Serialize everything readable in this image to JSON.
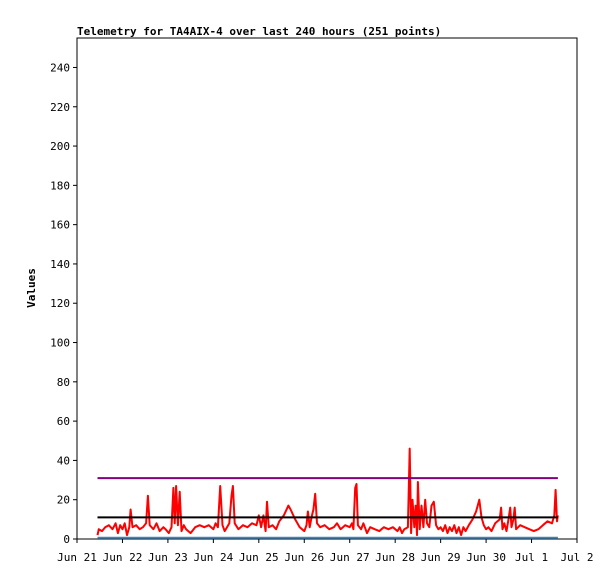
{
  "chart_data": {
    "type": "line",
    "title": "Telemetry for TA4AIX-4 over last 240 hours (251 points)",
    "xlabel": "",
    "ylabel": "Values",
    "ylim": [
      0,
      255
    ],
    "xlim": [
      0,
      11
    ],
    "yticks": [
      0,
      20,
      40,
      60,
      80,
      100,
      120,
      140,
      160,
      180,
      200,
      220,
      240
    ],
    "xticks": [
      {
        "x": 0,
        "label": "Jun 21"
      },
      {
        "x": 1,
        "label": "Jun 22"
      },
      {
        "x": 2,
        "label": "Jun 23"
      },
      {
        "x": 3,
        "label": "Jun 24"
      },
      {
        "x": 4,
        "label": "Jun 25"
      },
      {
        "x": 5,
        "label": "Jun 26"
      },
      {
        "x": 6,
        "label": "Jun 27"
      },
      {
        "x": 7,
        "label": "Jun 28"
      },
      {
        "x": 8,
        "label": "Jun 29"
      },
      {
        "x": 9,
        "label": "Jun 30"
      },
      {
        "x": 10,
        "label": "Jul 1"
      },
      {
        "x": 11,
        "label": "Jul 2"
      }
    ],
    "grid": false,
    "series": [
      {
        "color": "#ff0000",
        "points": [
          [
            0.45,
            2
          ],
          [
            0.48,
            5
          ],
          [
            0.55,
            4
          ],
          [
            0.62,
            6
          ],
          [
            0.7,
            7
          ],
          [
            0.78,
            5
          ],
          [
            0.85,
            8
          ],
          [
            0.9,
            3
          ],
          [
            0.95,
            7
          ],
          [
            1.0,
            5
          ],
          [
            1.05,
            8
          ],
          [
            1.1,
            2
          ],
          [
            1.15,
            6
          ],
          [
            1.18,
            15
          ],
          [
            1.22,
            6
          ],
          [
            1.3,
            7
          ],
          [
            1.38,
            5
          ],
          [
            1.45,
            6
          ],
          [
            1.52,
            8
          ],
          [
            1.56,
            22
          ],
          [
            1.6,
            7
          ],
          [
            1.68,
            5
          ],
          [
            1.75,
            8
          ],
          [
            1.82,
            4
          ],
          [
            1.9,
            6
          ],
          [
            1.95,
            5
          ],
          [
            2.02,
            3
          ],
          [
            2.08,
            6
          ],
          [
            2.12,
            26
          ],
          [
            2.15,
            8
          ],
          [
            2.18,
            27
          ],
          [
            2.22,
            7
          ],
          [
            2.26,
            24
          ],
          [
            2.3,
            4
          ],
          [
            2.35,
            7
          ],
          [
            2.4,
            5
          ],
          [
            2.5,
            3
          ],
          [
            2.6,
            6
          ],
          [
            2.7,
            7
          ],
          [
            2.8,
            6
          ],
          [
            2.9,
            7
          ],
          [
            3.0,
            5
          ],
          [
            3.05,
            8
          ],
          [
            3.1,
            6
          ],
          [
            3.15,
            27
          ],
          [
            3.2,
            7
          ],
          [
            3.25,
            4
          ],
          [
            3.3,
            6
          ],
          [
            3.35,
            8
          ],
          [
            3.4,
            22
          ],
          [
            3.43,
            27
          ],
          [
            3.47,
            8
          ],
          [
            3.55,
            5
          ],
          [
            3.65,
            7
          ],
          [
            3.75,
            6
          ],
          [
            3.85,
            8
          ],
          [
            3.95,
            7
          ],
          [
            4.0,
            12
          ],
          [
            4.05,
            6
          ],
          [
            4.1,
            12
          ],
          [
            4.15,
            4
          ],
          [
            4.18,
            19
          ],
          [
            4.22,
            6
          ],
          [
            4.3,
            7
          ],
          [
            4.38,
            5
          ],
          [
            4.45,
            9
          ],
          [
            4.55,
            12
          ],
          [
            4.65,
            17
          ],
          [
            4.7,
            15
          ],
          [
            4.8,
            10
          ],
          [
            4.9,
            6
          ],
          [
            5.0,
            4
          ],
          [
            5.05,
            7
          ],
          [
            5.08,
            14
          ],
          [
            5.12,
            6
          ],
          [
            5.16,
            11
          ],
          [
            5.2,
            15
          ],
          [
            5.24,
            23
          ],
          [
            5.28,
            8
          ],
          [
            5.35,
            6
          ],
          [
            5.45,
            7
          ],
          [
            5.55,
            5
          ],
          [
            5.65,
            6
          ],
          [
            5.72,
            8
          ],
          [
            5.8,
            5
          ],
          [
            5.9,
            7
          ],
          [
            6.0,
            6
          ],
          [
            6.05,
            8
          ],
          [
            6.08,
            5
          ],
          [
            6.12,
            26
          ],
          [
            6.15,
            28
          ],
          [
            6.18,
            7
          ],
          [
            6.25,
            5
          ],
          [
            6.3,
            8
          ],
          [
            6.38,
            3
          ],
          [
            6.45,
            6
          ],
          [
            6.55,
            5
          ],
          [
            6.65,
            4
          ],
          [
            6.75,
            6
          ],
          [
            6.85,
            5
          ],
          [
            6.95,
            6
          ],
          [
            7.05,
            4
          ],
          [
            7.1,
            6
          ],
          [
            7.15,
            3
          ],
          [
            7.2,
            5
          ],
          [
            7.28,
            6
          ],
          [
            7.32,
            46
          ],
          [
            7.35,
            3
          ],
          [
            7.38,
            20
          ],
          [
            7.42,
            6
          ],
          [
            7.45,
            17
          ],
          [
            7.48,
            2
          ],
          [
            7.5,
            29
          ],
          [
            7.54,
            5
          ],
          [
            7.58,
            17
          ],
          [
            7.62,
            6
          ],
          [
            7.66,
            20
          ],
          [
            7.7,
            8
          ],
          [
            7.75,
            6
          ],
          [
            7.8,
            17
          ],
          [
            7.85,
            19
          ],
          [
            7.9,
            7
          ],
          [
            7.95,
            5
          ],
          [
            8.0,
            6
          ],
          [
            8.05,
            4
          ],
          [
            8.1,
            7
          ],
          [
            8.15,
            3
          ],
          [
            8.2,
            6
          ],
          [
            8.25,
            4
          ],
          [
            8.3,
            7
          ],
          [
            8.35,
            3
          ],
          [
            8.4,
            6
          ],
          [
            8.45,
            2
          ],
          [
            8.5,
            6
          ],
          [
            8.55,
            4
          ],
          [
            8.62,
            7
          ],
          [
            8.7,
            10
          ],
          [
            8.78,
            14
          ],
          [
            8.85,
            20
          ],
          [
            8.9,
            11
          ],
          [
            8.95,
            7
          ],
          [
            9.0,
            5
          ],
          [
            9.05,
            6
          ],
          [
            9.12,
            4
          ],
          [
            9.2,
            8
          ],
          [
            9.3,
            10
          ],
          [
            9.33,
            16
          ],
          [
            9.36,
            5
          ],
          [
            9.4,
            8
          ],
          [
            9.45,
            4
          ],
          [
            9.5,
            11
          ],
          [
            9.53,
            16
          ],
          [
            9.56,
            6
          ],
          [
            9.6,
            10
          ],
          [
            9.63,
            16
          ],
          [
            9.66,
            5
          ],
          [
            9.75,
            7
          ],
          [
            9.85,
            6
          ],
          [
            9.95,
            5
          ],
          [
            10.05,
            4
          ],
          [
            10.15,
            5
          ],
          [
            10.25,
            7
          ],
          [
            10.35,
            9
          ],
          [
            10.45,
            8
          ],
          [
            10.5,
            12
          ],
          [
            10.53,
            25
          ],
          [
            10.56,
            9
          ],
          [
            10.58,
            12
          ]
        ]
      },
      {
        "color": "#000000",
        "points": [
          [
            0.45,
            11
          ],
          [
            10.58,
            11
          ]
        ]
      },
      {
        "color": "#800080",
        "points": [
          [
            0.45,
            31
          ],
          [
            10.58,
            31
          ]
        ]
      },
      {
        "color": "#4682b4",
        "points": [
          [
            0.45,
            0.6
          ],
          [
            10.58,
            0.6
          ]
        ]
      }
    ]
  }
}
